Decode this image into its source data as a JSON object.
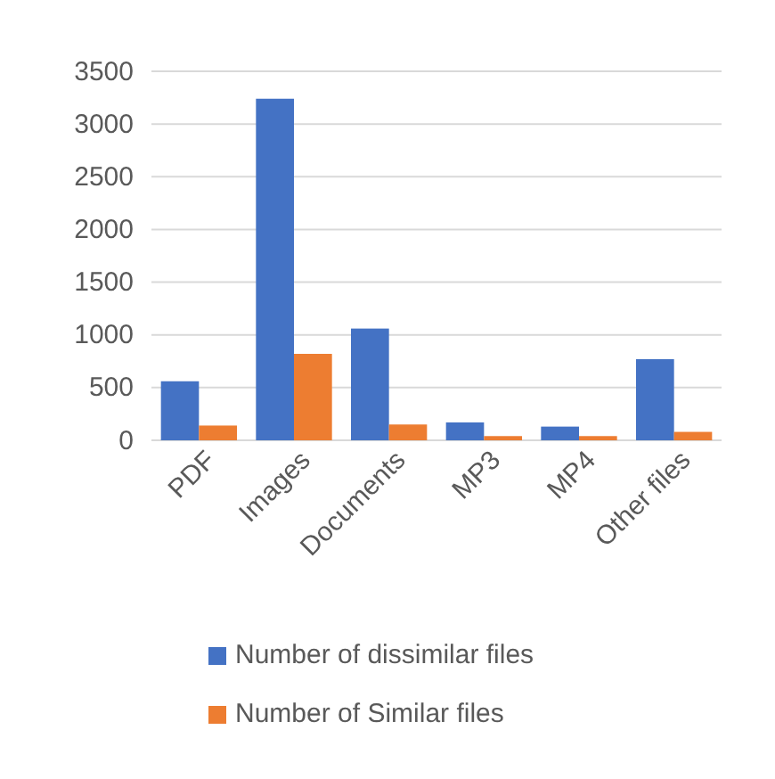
{
  "chart_data": {
    "type": "bar",
    "categories": [
      "PDF",
      "Images",
      "Documents",
      "MP3",
      "MP4",
      "Other files"
    ],
    "series": [
      {
        "name": "Number of dissimilar files",
        "color": "#4472c4",
        "values": [
          560,
          3240,
          1060,
          170,
          130,
          770
        ]
      },
      {
        "name": "Number of Similar files",
        "color": "#ed7d31",
        "values": [
          140,
          820,
          150,
          40,
          40,
          80
        ]
      }
    ],
    "ylim": [
      0,
      3500
    ],
    "yticks": [
      0,
      500,
      1000,
      1500,
      2000,
      2500,
      3000,
      3500
    ],
    "grid": "y",
    "legend": "bottom"
  }
}
